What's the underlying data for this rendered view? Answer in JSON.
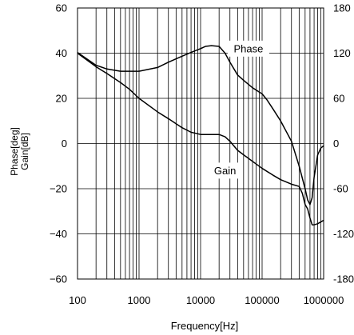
{
  "chart_data": {
    "type": "line",
    "xlabel": "Frequency[Hz]",
    "ylabel_lines": [
      "Phase[deg]",
      "Gain[dB]"
    ],
    "x_scale": "log",
    "xlim": [
      100,
      1000000
    ],
    "x_ticks": [
      100,
      1000,
      10000,
      100000,
      1000000
    ],
    "x_tick_labels": [
      "100",
      "1000",
      "10000",
      "100000",
      "1000000"
    ],
    "ylim_left": [
      -60,
      60
    ],
    "y_left_ticks": [
      60,
      40,
      20,
      0,
      -20,
      -40,
      -60
    ],
    "y_left_tick_labels": [
      "60",
      "40",
      "20",
      "0",
      "−20",
      "−40",
      "−60"
    ],
    "ylim_right": [
      -180,
      180
    ],
    "y_right_ticks": [
      180,
      120,
      60,
      0,
      -60,
      -120,
      -180
    ],
    "y_right_tick_labels": [
      "180",
      "120",
      "60",
      "0",
      "-60",
      "-120",
      "-180"
    ],
    "grid": {
      "horizontal": true,
      "vertical_log_minor": true
    },
    "line_color": "#000000",
    "series": [
      {
        "name": "Phase",
        "axis": "right",
        "label_x": 60000,
        "label_y_left": 42,
        "points": [
          [
            100,
            121
          ],
          [
            150,
            111
          ],
          [
            200,
            104
          ],
          [
            300,
            99
          ],
          [
            500,
            96
          ],
          [
            1000,
            96
          ],
          [
            2000,
            101
          ],
          [
            3000,
            108
          ],
          [
            5000,
            116
          ],
          [
            7000,
            121
          ],
          [
            10000,
            126
          ],
          [
            12000,
            129
          ],
          [
            15000,
            130
          ],
          [
            20000,
            129
          ],
          [
            25000,
            120
          ],
          [
            30000,
            108
          ],
          [
            40000,
            91
          ],
          [
            50000,
            84
          ],
          [
            70000,
            74
          ],
          [
            100000,
            66
          ],
          [
            120000,
            58
          ],
          [
            150000,
            46
          ],
          [
            200000,
            30
          ],
          [
            300000,
            3
          ],
          [
            400000,
            -30
          ],
          [
            500000,
            -60
          ],
          [
            550000,
            -75
          ],
          [
            600000,
            -81
          ],
          [
            650000,
            -72
          ],
          [
            700000,
            -45
          ],
          [
            800000,
            -15
          ],
          [
            900000,
            -6
          ],
          [
            1000000,
            -3
          ]
        ]
      },
      {
        "name": "Gain",
        "axis": "left",
        "label_x": 25000,
        "label_y_left": -12,
        "points": [
          [
            100,
            40
          ],
          [
            200,
            34
          ],
          [
            300,
            31
          ],
          [
            500,
            27
          ],
          [
            700,
            24
          ],
          [
            1000,
            20
          ],
          [
            2000,
            14
          ],
          [
            3000,
            11
          ],
          [
            5000,
            7
          ],
          [
            7000,
            5
          ],
          [
            10000,
            4
          ],
          [
            15000,
            4
          ],
          [
            20000,
            4
          ],
          [
            25000,
            3
          ],
          [
            30000,
            1
          ],
          [
            40000,
            -3
          ],
          [
            50000,
            -5
          ],
          [
            100000,
            -11
          ],
          [
            150000,
            -14
          ],
          [
            200000,
            -16
          ],
          [
            300000,
            -18
          ],
          [
            400000,
            -19
          ],
          [
            450000,
            -22
          ],
          [
            500000,
            -27
          ],
          [
            550000,
            -29
          ],
          [
            600000,
            -33
          ],
          [
            650000,
            -36
          ],
          [
            700000,
            -36
          ],
          [
            800000,
            -35.5
          ],
          [
            1000000,
            -34
          ]
        ]
      }
    ]
  }
}
